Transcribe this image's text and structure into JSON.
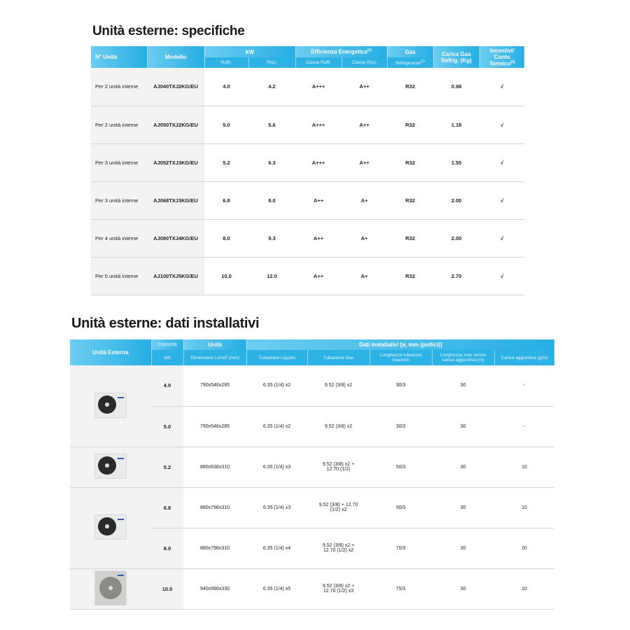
{
  "specs": {
    "title": "Unità esterne: specifiche",
    "headers": {
      "n_unita": "N° Unità",
      "modello": "Modello",
      "kw": "kW",
      "raffr": "Raffr.",
      "risc": "Risc.",
      "efficienza": "Efficienza Energetica",
      "efficienza_note": "(1)",
      "classe_raffr": "Classe Raffr.",
      "classe_risc": "Classe Risc.",
      "gas": "Gas",
      "refrigerante": "Refrigerante",
      "refrigerante_note": "(2)",
      "carica_gas": "Carica Gas Refrig. (Kg)",
      "incentivi": "Incentivi/ Conto Termico",
      "incentivi_note": "(3)"
    },
    "rows": [
      {
        "n": "Per 2 unità interne",
        "model": "AJ040TXJ2KG/EU",
        "raffr": "4.0",
        "risc": "4.2",
        "cr": "A+++",
        "cs": "A++",
        "gas": "R32",
        "carica": "0.98",
        "inc": "√"
      },
      {
        "n": "Per 2 unità interne",
        "model": "AJ050TXJ2KG/EU",
        "raffr": "5.0",
        "risc": "5.6",
        "cr": "A+++",
        "cs": "A++",
        "gas": "R32",
        "carica": "1.18",
        "inc": "√"
      },
      {
        "n": "Per 3 unità interne",
        "model": "AJ052TXJ3KG/EU",
        "raffr": "5.2",
        "risc": "6.3",
        "cr": "A+++",
        "cs": "A++",
        "gas": "R32",
        "carica": "1.55",
        "inc": "√"
      },
      {
        "n": "Per 3 unità interne",
        "model": "AJ068TXJ3KG/EU",
        "raffr": "6.8",
        "risc": "8.0",
        "cr": "A++",
        "cs": "A+",
        "gas": "R32",
        "carica": "2.00",
        "inc": "√"
      },
      {
        "n": "Per 4 unità interne",
        "model": "AJ080TXJ4KG/EU",
        "raffr": "8.0",
        "risc": "9.3",
        "cr": "A++",
        "cs": "A+",
        "gas": "R32",
        "carica": "2.00",
        "inc": "√"
      },
      {
        "n": "Per 5 unità interne",
        "model": "AJ100TXJ5KG/EU",
        "raffr": "10.0",
        "risc": "12.0",
        "cr": "A++",
        "cs": "A+",
        "gas": "R32",
        "carica": "2.70",
        "inc": "√"
      }
    ]
  },
  "install": {
    "title": "Unità esterne: dati installativi",
    "headers": {
      "unita_esterna": "Unità Esterna",
      "capacita": "Capacità",
      "kw": "kW",
      "unita": "Unità",
      "dimensioni": "Dimensioni LxAxP (mm)",
      "dati": "Dati installativi [ø, mm (pollici)]",
      "liquido": "Tubazione Liquido",
      "gas": "Tubazione Gas",
      "lunghezza": "Lunghezza tubazioni max/min",
      "lunghezza_max": "Lunghezza max senza carica aggiuntiva (m)",
      "carica": "Carica aggiuntiva (g/m)"
    },
    "rows": [
      {
        "cap": "4.0",
        "dim": "790x548x285",
        "liq": "6.35 (1/4) x2",
        "gas": "9.52 (3/8) x2",
        "len": "30/3",
        "lmax": "30",
        "car": "-"
      },
      {
        "cap": "5.0",
        "dim": "790x548x285",
        "liq": "6.35 (1/4) x2",
        "gas": "9.52 (3/8) x2",
        "len": "30/3",
        "lmax": "30",
        "car": "-"
      },
      {
        "cap": "5.2",
        "dim": "880x638x310",
        "liq": "6.35 (1/4) x3",
        "gas": "9.52 (3/8) x2 + 12.70 (1/2)",
        "len": "50/3",
        "lmax": "30",
        "car": "10"
      },
      {
        "cap": "6.8",
        "dim": "880x798x310",
        "liq": "6.35 (1/4) x3",
        "gas": "9.52 (3/8) + 12.70 (1/2) x2",
        "len": "50/3",
        "lmax": "30",
        "car": "10"
      },
      {
        "cap": "8.0",
        "dim": "880x798x310",
        "liq": "6.35 (1/4) x4",
        "gas": "9.52 (3/8) x2 + 12.70 (1/2) x2",
        "len": "70/3",
        "lmax": "30",
        "car": "20"
      },
      {
        "cap": "10.0",
        "dim": "940x998x330",
        "liq": "6.35 (1/4) x5",
        "gas": "9.52 (3/8) x2 + 12.70 (1/2) x3",
        "len": "75/3",
        "lmax": "30",
        "car": "10"
      }
    ]
  },
  "colors": {
    "header_start": "#6ccdf0",
    "header_end": "#27aee4",
    "grey_column": "#f3f3f3"
  }
}
